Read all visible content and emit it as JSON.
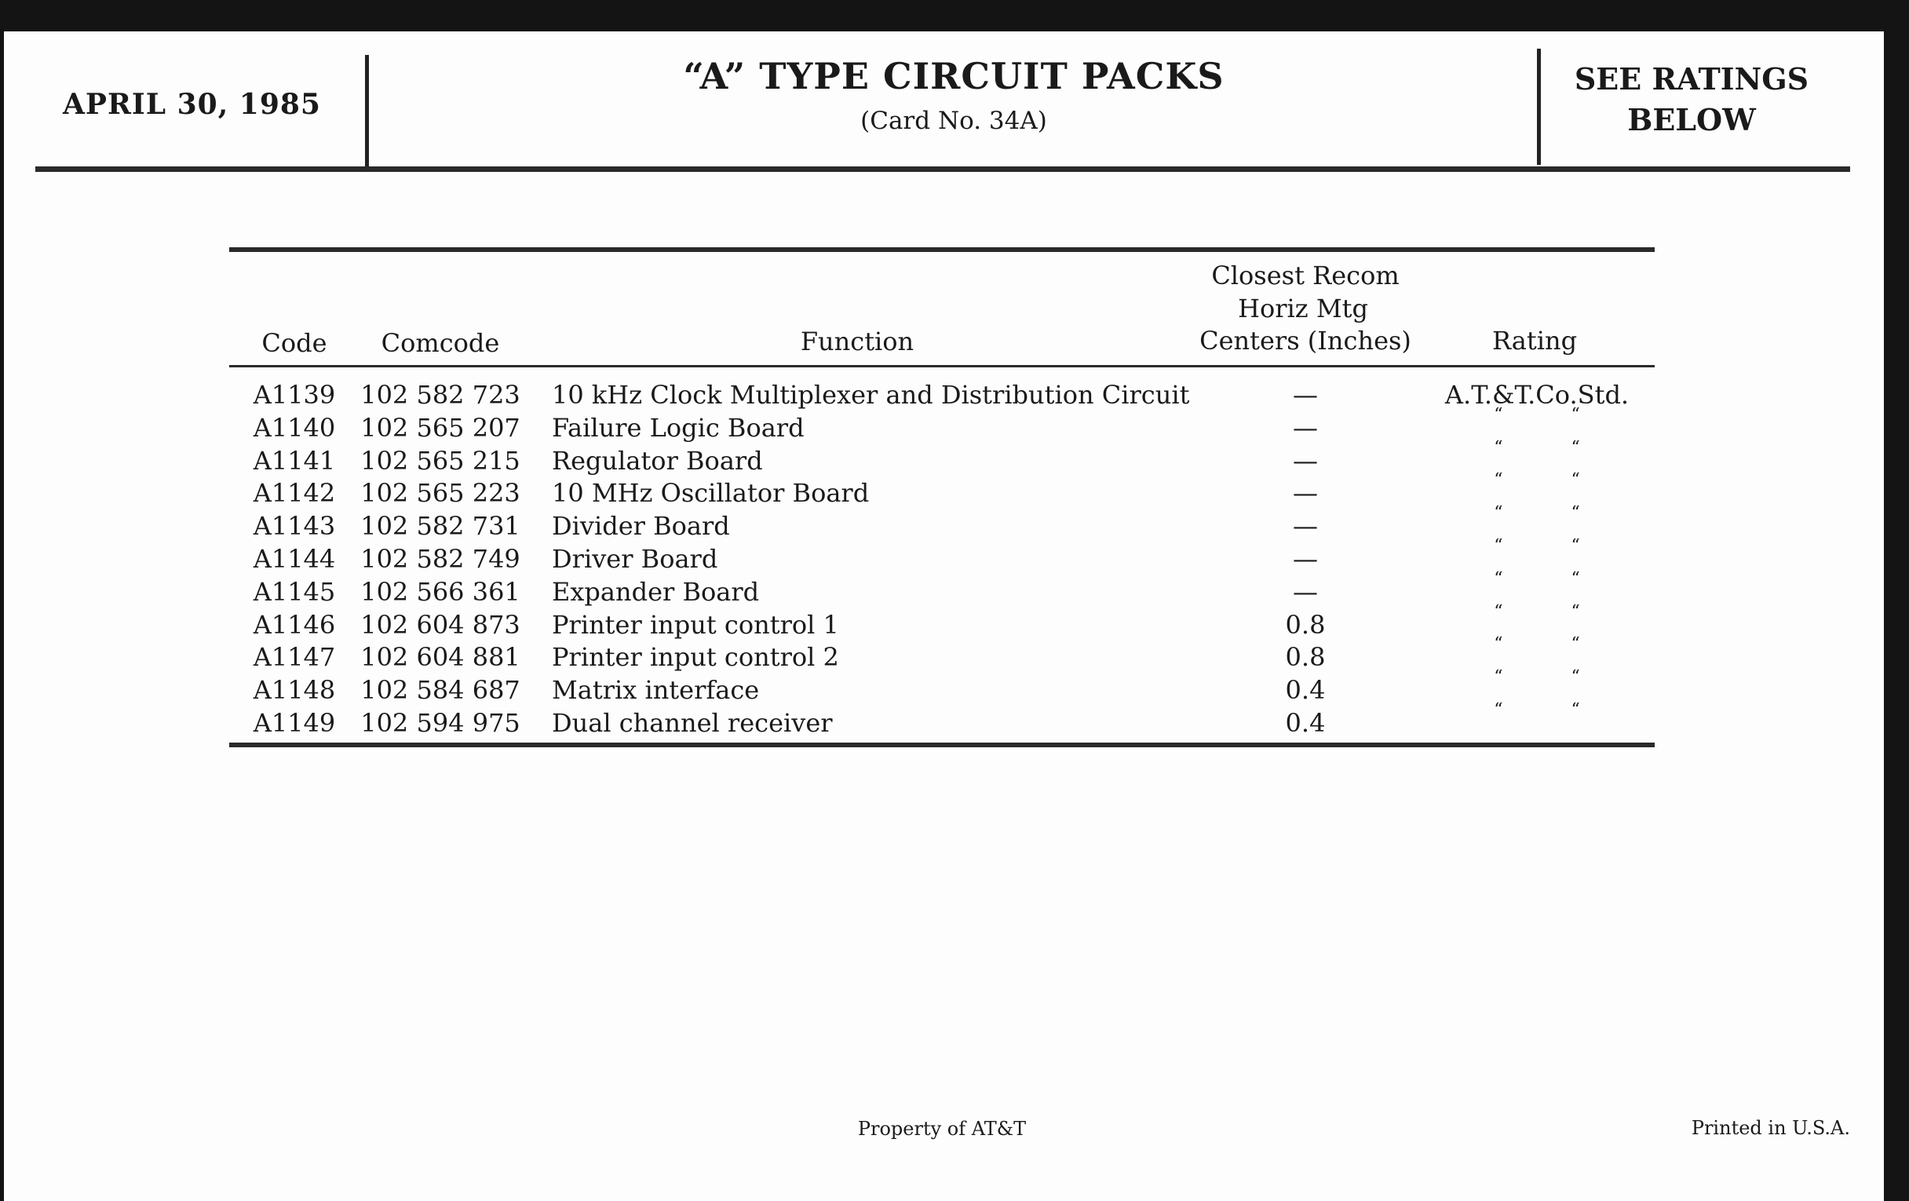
{
  "header": {
    "date": "APRIL 30, 1985",
    "title": "“A” TYPE CIRCUIT PACKS",
    "subtitle": "(Card No. 34A)",
    "ratings_note_line1": "SEE RATINGS",
    "ratings_note_line2": "BELOW"
  },
  "table": {
    "headers": {
      "code": "Code",
      "comcode": "Comcode",
      "function": "Function",
      "centers_line1": "Closest Recom",
      "centers_line2": "Horiz Mtg",
      "centers_line3": "Centers (Inches)",
      "rating": "Rating"
    },
    "rows": [
      {
        "code": "A1139",
        "comcode": "102 582 723",
        "function": "10 kHz Clock Multiplexer and Distribution Circuit",
        "centers": "—",
        "rating": "A.T.&T.Co.Std."
      },
      {
        "code": "A1140",
        "comcode": "102 565 207",
        "function": "Failure Logic Board",
        "centers": "—",
        "rating": "“ “"
      },
      {
        "code": "A1141",
        "comcode": "102 565 215",
        "function": "Regulator Board",
        "centers": "—",
        "rating": "“ “"
      },
      {
        "code": "A1142",
        "comcode": "102 565 223",
        "function": "10 MHz Oscillator Board",
        "centers": "—",
        "rating": "“ “"
      },
      {
        "code": "A1143",
        "comcode": "102 582 731",
        "function": "Divider Board",
        "centers": "—",
        "rating": "“ “"
      },
      {
        "code": "A1144",
        "comcode": "102 582 749",
        "function": "Driver Board",
        "centers": "—",
        "rating": "“ “"
      },
      {
        "code": "A1145",
        "comcode": "102 566 361",
        "function": "Expander Board",
        "centers": "—",
        "rating": "“ “"
      },
      {
        "code": "A1146",
        "comcode": "102 604 873",
        "function": "Printer input control 1",
        "centers": "0.8",
        "rating": "“ “"
      },
      {
        "code": "A1147",
        "comcode": "102 604 881",
        "function": "Printer input control 2",
        "centers": "0.8",
        "rating": "“ “"
      },
      {
        "code": "A1148",
        "comcode": "102 584 687",
        "function": "Matrix interface",
        "centers": "0.4",
        "rating": "“ “"
      },
      {
        "code": "A1149",
        "comcode": "102 594 975",
        "function": "Dual channel receiver",
        "centers": "0.4",
        "rating": "“ “"
      }
    ]
  },
  "footer": {
    "property": "Property of AT&T",
    "printed": "Printed in U.S.A."
  }
}
